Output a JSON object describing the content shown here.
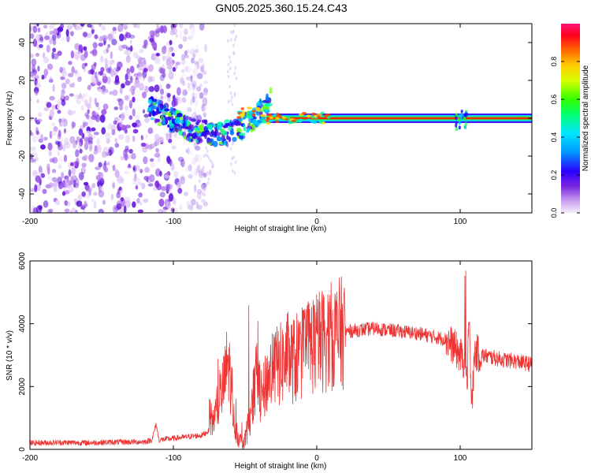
{
  "title": "GN05.2025.360.15.24.C43",
  "colors": {
    "snr_line": "#ee3333",
    "axis": "#000000",
    "background": "#ffffff"
  },
  "chart_data": [
    {
      "id": "spectrogram",
      "type": "heatmap",
      "title": "GN05.2025.360.15.24.C43",
      "xlabel": "Height of straight line (km)",
      "ylabel": "Frequency (Hz)",
      "xlim": [
        -200,
        150
      ],
      "ylim": [
        -50,
        50
      ],
      "xticks": [
        -200,
        -100,
        0,
        100
      ],
      "yticks": [
        -40,
        -20,
        0,
        20,
        40
      ],
      "colorbar": {
        "label": "Normalized spectral amplitude",
        "range": [
          0.0,
          1.0
        ],
        "ticks": [
          0.0,
          0.2,
          0.4,
          0.6,
          0.8
        ],
        "tick_labels": [
          "0.0",
          "0.2",
          "0.4",
          "0.6",
          "0.8"
        ]
      },
      "features": {
        "noise_region_x": [
          -200,
          -77
        ],
        "tone_frequency_hz": 0,
        "tone_start_x": -118,
        "tone_end_x": 150
      }
    },
    {
      "id": "snr",
      "type": "line",
      "xlabel": "Height of straight line (km)",
      "ylabel": "SNR (10 * v/v)",
      "xlim": [
        -200,
        150
      ],
      "ylim": [
        0,
        6000
      ],
      "xticks": [
        -200,
        -100,
        0,
        100
      ],
      "yticks": [
        0,
        2000,
        4000,
        6000
      ],
      "series": [
        {
          "name": "SNR",
          "x": [
            -200,
            -180,
            -160,
            -140,
            -120,
            -115,
            -112,
            -110,
            -100,
            -90,
            -80,
            -75,
            -70,
            -65,
            -62,
            -60,
            -58,
            -55,
            -52,
            -50,
            -48,
            -45,
            -42,
            -40,
            -38,
            -35,
            -30,
            -25,
            -20,
            -15,
            -10,
            -5,
            0,
            5,
            10,
            20,
            30,
            40,
            50,
            60,
            70,
            80,
            90,
            95,
            100,
            103,
            105,
            106,
            107,
            108,
            110,
            115,
            120,
            130,
            140,
            150
          ],
          "y": [
            200,
            220,
            210,
            230,
            240,
            300,
            800,
            300,
            350,
            400,
            450,
            600,
            1200,
            2000,
            2800,
            2200,
            1000,
            400,
            200,
            350,
            700,
            1500,
            2300,
            1900,
            1600,
            2200,
            2600,
            2700,
            2900,
            2800,
            3100,
            3300,
            3400,
            3500,
            3600,
            3750,
            3800,
            3850,
            3800,
            3750,
            3700,
            3600,
            3500,
            3300,
            3000,
            2800,
            1800,
            4800,
            3200,
            1200,
            3100,
            3000,
            2950,
            2850,
            2800,
            2700
          ]
        }
      ]
    }
  ]
}
